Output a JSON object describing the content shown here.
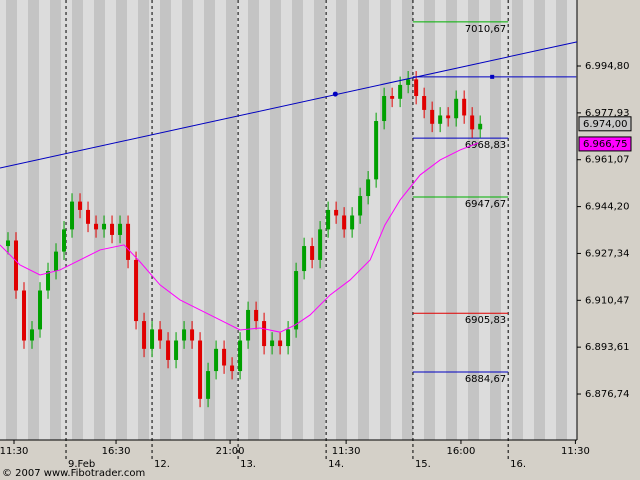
{
  "chart_data": {
    "type": "candlestick",
    "x": [
      1,
      2,
      3,
      4,
      5,
      6,
      7,
      8,
      9,
      10,
      11,
      12,
      13,
      14,
      15,
      16,
      17,
      18,
      19,
      20,
      21,
      22,
      23,
      24,
      25,
      26,
      27,
      28,
      29,
      30,
      31,
      32,
      33,
      34,
      35,
      36,
      37,
      38,
      39,
      40,
      41,
      42,
      43,
      44,
      45,
      46,
      47,
      48,
      49,
      50,
      51,
      52,
      53,
      54,
      55,
      56,
      57,
      58,
      59,
      60
    ],
    "open": [
      6930,
      6932,
      6914,
      6896,
      6900,
      6914,
      6921,
      6928,
      6936,
      6946,
      6943,
      6938,
      6936,
      6938,
      6934,
      6938,
      6925,
      6903,
      6893,
      6900,
      6896,
      6889,
      6896,
      6900,
      6896,
      6875,
      6885,
      6893,
      6887,
      6885,
      6896,
      6907,
      6903,
      6894,
      6896,
      6894,
      6900,
      6921,
      6930,
      6925,
      6936,
      6943,
      6941,
      6936,
      6941,
      6948,
      6954,
      6975,
      6984,
      6983,
      6988,
      6990,
      6984,
      6979,
      6974,
      6977,
      6976,
      6983,
      6977,
      6972
    ],
    "high": [
      6935,
      6935,
      6917,
      6903,
      6917,
      6924,
      6931,
      6939,
      6949,
      6949,
      6946,
      6941,
      6941,
      6941,
      6941,
      6941,
      6928,
      6906,
      6903,
      6903,
      6899,
      6899,
      6903,
      6903,
      6899,
      6888,
      6896,
      6896,
      6890,
      6899,
      6910,
      6910,
      6906,
      6899,
      6899,
      6903,
      6924,
      6933,
      6933,
      6939,
      6946,
      6946,
      6944,
      6944,
      6951,
      6957,
      6978,
      6987,
      6987,
      6991,
      6993,
      6993,
      6987,
      6982,
      6980,
      6980,
      6986,
      6986,
      6980,
      6977
    ],
    "low": [
      6927,
      6911,
      6893,
      6893,
      6897,
      6911,
      6918,
      6925,
      6933,
      6940,
      6935,
      6933,
      6933,
      6931,
      6931,
      6922,
      6900,
      6890,
      6890,
      6893,
      6886,
      6886,
      6893,
      6893,
      6872,
      6872,
      6882,
      6884,
      6882,
      6882,
      6893,
      6900,
      6891,
      6891,
      6891,
      6891,
      6897,
      6918,
      6922,
      6922,
      6933,
      6938,
      6933,
      6933,
      6938,
      6945,
      6951,
      6972,
      6980,
      6980,
      6985,
      6981,
      6976,
      6971,
      6971,
      6973,
      6973,
      6974,
      6969,
      6969
    ],
    "close": [
      6932,
      6914,
      6896,
      6900,
      6914,
      6921,
      6928,
      6936,
      6946,
      6943,
      6938,
      6936,
      6938,
      6934,
      6938,
      6925,
      6903,
      6893,
      6900,
      6896,
      6889,
      6896,
      6900,
      6896,
      6875,
      6885,
      6893,
      6887,
      6885,
      6896,
      6907,
      6903,
      6894,
      6896,
      6894,
      6900,
      6921,
      6930,
      6925,
      6936,
      6943,
      6941,
      6936,
      6941,
      6948,
      6954,
      6975,
      6984,
      6983,
      6988,
      6990,
      6984,
      6979,
      6974,
      6977,
      6976,
      6983,
      6977,
      6972,
      6974
    ],
    "up_color": "#00a000",
    "down_color": "#e00000",
    "lines": [
      {
        "color": "#ff00ff",
        "x": [
          0,
          2.5,
          5,
          7.5,
          10,
          12.5,
          15.5,
          17.5,
          20,
          22.5,
          25,
          27.5,
          30,
          32.5,
          35,
          36.9,
          38.75,
          41.25,
          43.75,
          46.25,
          48.1,
          50,
          52.5,
          55,
          57.5,
          59.75
        ],
        "values": [
          6930.4,
          6923.2,
          6919.6,
          6921.4,
          6925,
          6928.6,
          6930.4,
          6924.3,
          6916,
          6910.6,
          6907,
          6903.4,
          6899.8,
          6900.5,
          6899,
          6901.6,
          6905.2,
          6912.4,
          6917.8,
          6925,
          6937.6,
          6946.6,
          6955.6,
          6961,
          6964.6,
          6967.1
        ]
      },
      {
        "color": "#0000c0",
        "x": [
          0,
          72.1
        ],
        "values": [
          6958.1,
          7003.5
        ]
      },
      {
        "color": "#0000c0",
        "x": [
          51.6,
          72
        ],
        "values": [
          6990.9,
          6990.9
        ]
      }
    ],
    "markers": [
      {
        "x": 41.9,
        "y": 6984.7,
        "color": "#0000c0"
      },
      {
        "x": 61.5,
        "y": 6990.9,
        "color": "#0000c0"
      }
    ],
    "levels": [
      {
        "value": 7010.67,
        "label": "7010,67",
        "color": "#00b000"
      },
      {
        "value": 6968.83,
        "label": "6968,83",
        "color": "#0000c0"
      },
      {
        "value": 6947.67,
        "label": "6947,67",
        "color": "#00b000"
      },
      {
        "value": 6905.83,
        "label": "6905,83",
        "color": "#e00000"
      },
      {
        "value": 6884.67,
        "label": "6884,67",
        "color": "#0000c0"
      }
    ],
    "price_tags": [
      {
        "value": 6974,
        "label": "6.974,00",
        "color": "#c8c8c8"
      },
      {
        "value": 6966.75,
        "label": "6.966,75",
        "color": "#ff00ff"
      }
    ],
    "xlim": [
      0,
      72.1
    ],
    "ylim": [
      6860.19,
      7018.56
    ],
    "yticks": [
      {
        "value": 6994.8,
        "label": "6.994,80"
      },
      {
        "value": 6977.93,
        "label": "6.977,93"
      },
      {
        "value": 6961.07,
        "label": "6.961,07"
      },
      {
        "value": 6944.2,
        "label": "6.944,20"
      },
      {
        "value": 6927.34,
        "label": "6.927,34"
      },
      {
        "value": 6910.47,
        "label": "6.910,47"
      },
      {
        "value": 6893.61,
        "label": "6.893,61"
      },
      {
        "value": 6876.74,
        "label": "6.876,74"
      }
    ],
    "xticks": [
      {
        "value": 1.75,
        "label": "11:30"
      },
      {
        "value": 14.5,
        "label": "16:30"
      },
      {
        "value": 28.75,
        "label": "21:00"
      },
      {
        "value": 43.25,
        "label": "11:30"
      },
      {
        "value": 57.6,
        "label": "16:00"
      },
      {
        "value": 71.9,
        "label": "11:30"
      }
    ],
    "date_ticks": [
      {
        "value": 8.25,
        "label": "9.Feb"
      },
      {
        "value": 19,
        "label": "12."
      },
      {
        "value": 29.75,
        "label": "13."
      },
      {
        "value": 40.75,
        "label": "14."
      },
      {
        "value": 51.6,
        "label": "15."
      },
      {
        "value": 63.5,
        "label": "16."
      }
    ],
    "credit": "© 2007 www.Fibotrader.com"
  }
}
